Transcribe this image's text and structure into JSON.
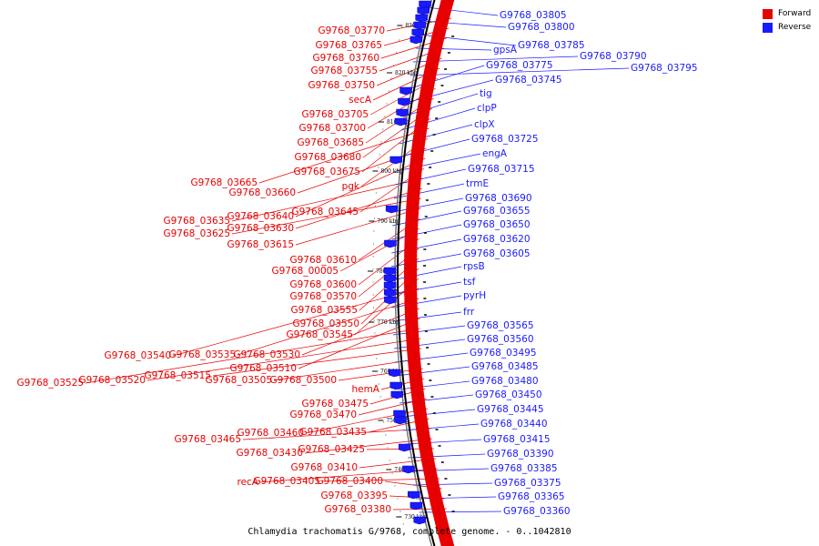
{
  "caption": "Chlamydia trachomatis G/9768, complete genome. - 0..1042810",
  "colors": {
    "forward": "#e60000",
    "reverse": "#0000e6",
    "backbone": "#000000"
  },
  "legend": [
    {
      "label": "Forward",
      "color": "#e60000"
    },
    {
      "label": "Reverse",
      "color": "#1a1aff"
    }
  ],
  "scale_ticks": [
    "830 kbp",
    "820 kbp",
    "810 kbp",
    "800 kbp",
    "790 kbp",
    "780 kbp",
    "770 kbp",
    "760 kbp",
    "750 kbp",
    "740 kbp",
    "730 kbp"
  ],
  "forward_labels": [
    "G9768_03770",
    "G9768_03765",
    "G9768_03760",
    "G9768_03755",
    "G9768_03750",
    "secA",
    "G9768_03705",
    "G9768_03700",
    "G9768_03685",
    "G9768_03680",
    "G9768_03675",
    "G9768_03665",
    "pgk",
    "G9768_03660",
    "G9768_03640",
    "G9768_03645",
    "G9768_03635",
    "G9768_03630",
    "G9768_03625",
    "G9768_03615",
    "G9768_03610",
    "G9768_00005",
    "G9768_03600",
    "G9768_03570",
    "G9768_03555",
    "G9768_03550",
    "G9768_03545",
    "G9768_03540",
    "G9768_03535",
    "G9768_03530",
    "G9768_03510",
    "G9768_03525",
    "G9768_03520",
    "G9768_03515",
    "G9768_03505",
    "G9768_03500",
    "hemA",
    "G9768_03475",
    "G9768_03470",
    "G9768_03460",
    "G9768_03435",
    "G9768_03465",
    "G9768_03430",
    "G9768_03425",
    "G9768_03410",
    "recA",
    "G9768_03405",
    "G9768_03400",
    "G9768_03395",
    "G9768_03380"
  ],
  "reverse_labels": [
    "G9768_03805",
    "G9768_03800",
    "G9768_03785",
    "gpsA",
    "G9768_03790",
    "G9768_03795",
    "G9768_03775",
    "G9768_03745",
    "tig",
    "clpP",
    "clpX",
    "G9768_03725",
    "engA",
    "G9768_03715",
    "trmE",
    "G9768_03690",
    "G9768_03655",
    "G9768_03650",
    "G9768_03620",
    "G9768_03605",
    "rpsB",
    "tsf",
    "pyrH",
    "frr",
    "G9768_03565",
    "G9768_03560",
    "G9768_03495",
    "G9768_03485",
    "G9768_03480",
    "G9768_03450",
    "G9768_03445",
    "G9768_03440",
    "G9768_03415",
    "G9768_03390",
    "G9768_03385",
    "G9768_03375",
    "G9768_03365",
    "G9768_03360"
  ]
}
